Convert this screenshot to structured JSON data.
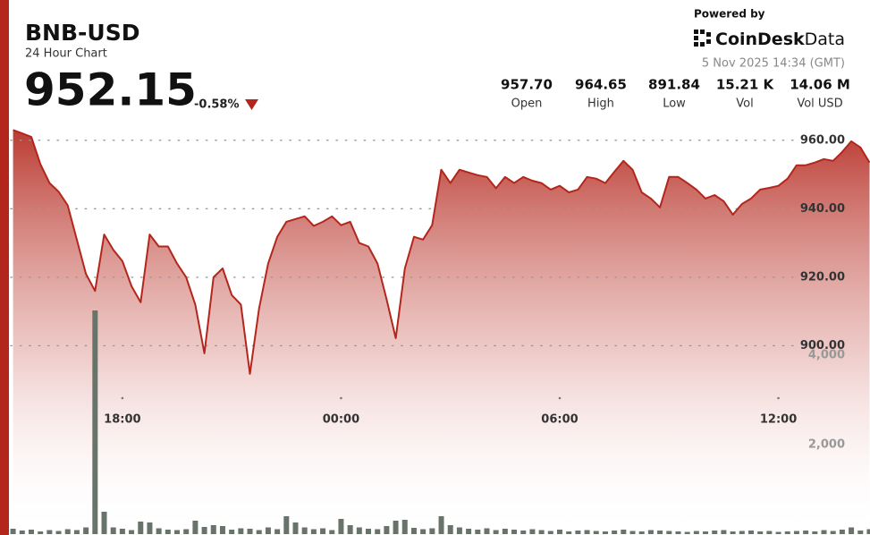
{
  "header": {
    "symbol": "BNB-USD",
    "subtitle": "24 Hour Chart",
    "price": "952.15",
    "change": "-0.58%",
    "powered_by": "Powered by",
    "brand_main": "CoinDesk",
    "brand_sub": "Data",
    "timestamp": "5 Nov 2025 14:34 (GMT)"
  },
  "stats": [
    {
      "value": "957.70",
      "label": "Open"
    },
    {
      "value": "964.65",
      "label": "High"
    },
    {
      "value": "891.84",
      "label": "Low"
    },
    {
      "value": "15.21 K",
      "label": "Vol"
    },
    {
      "value": "14.06 M",
      "label": "Vol USD"
    }
  ],
  "chart_data": {
    "type": "line",
    "categories": [
      null,
      null,
      null,
      null,
      null,
      null,
      null,
      null,
      null,
      null,
      null,
      null,
      "18:00",
      null,
      null,
      null,
      null,
      null,
      null,
      null,
      null,
      null,
      null,
      null,
      null,
      null,
      null,
      null,
      null,
      null,
      null,
      null,
      null,
      null,
      null,
      null,
      "00:00",
      null,
      null,
      null,
      null,
      null,
      null,
      null,
      null,
      null,
      null,
      null,
      null,
      null,
      null,
      null,
      null,
      null,
      null,
      null,
      null,
      null,
      null,
      null,
      "06:00",
      null,
      null,
      null,
      null,
      null,
      null,
      null,
      null,
      null,
      null,
      null,
      null,
      null,
      null,
      null,
      null,
      null,
      null,
      null,
      null,
      null,
      null,
      null,
      "12:00",
      null,
      null,
      null,
      null,
      null,
      null,
      null,
      null,
      null,
      null
    ],
    "series": [
      {
        "color": "#b3261c",
        "values": [
          963,
          962,
          961,
          953,
          947.5,
          945,
          941,
          931,
          921,
          916,
          932.5,
          928,
          924.7,
          917.4,
          912.7,
          932.5,
          929,
          929,
          924,
          920,
          912,
          897.8,
          920,
          922.6,
          914.8,
          912,
          891.8,
          910.8,
          924,
          931.8,
          936.2,
          937,
          937.8,
          935,
          936.2,
          937.8,
          935.2,
          936.2,
          930,
          929,
          924,
          913.5,
          902.2,
          922.6,
          931.8,
          931,
          935.2,
          951.4,
          947.5,
          951.4,
          950.6,
          949.8,
          949.3,
          946,
          949.3,
          947.5,
          949.3,
          948.2,
          947.5,
          945.6,
          946.7,
          944.8,
          945.6,
          949.3,
          948.8,
          947.5,
          950.8,
          954,
          951.4,
          944.8,
          943,
          940.4,
          949.3,
          949.3,
          947.5,
          945.6,
          943,
          944,
          942.2,
          938.3,
          941.4,
          943,
          945.6,
          946.1,
          946.7,
          948.8,
          952.7,
          952.7,
          953.5,
          954.5,
          954,
          956.6,
          959.7,
          957.9,
          953.5
        ]
      },
      {
        "axis": "y2",
        "color": "#68746a",
        "values": [
          120,
          80,
          100,
          60,
          90,
          70,
          110,
          90,
          150,
          5000,
          500,
          150,
          120,
          90,
          280,
          260,
          130,
          100,
          90,
          110,
          300,
          160,
          200,
          180,
          100,
          130,
          120,
          90,
          150,
          110,
          400,
          260,
          150,
          110,
          130,
          90,
          340,
          200,
          150,
          120,
          110,
          180,
          300,
          320,
          140,
          110,
          130,
          400,
          200,
          150,
          120,
          100,
          130,
          90,
          120,
          100,
          80,
          110,
          90,
          70,
          100,
          60,
          80,
          90,
          70,
          60,
          80,
          100,
          70,
          60,
          90,
          80,
          70,
          60,
          50,
          70,
          60,
          80,
          90,
          60,
          70,
          80,
          60,
          70,
          50,
          60,
          70,
          80,
          60,
          90,
          70,
          100,
          150,
          80,
          110
        ]
      }
    ],
    "ylim": [
      845,
      967
    ],
    "yticks": [
      {
        "value": 900,
        "label": "900.00"
      },
      {
        "value": 920,
        "label": "920.00"
      },
      {
        "value": 940,
        "label": "940.00"
      },
      {
        "value": 960,
        "label": "960.00"
      }
    ],
    "y2lim": [
      0,
      9340
    ],
    "y2ticks": [
      {
        "value": 2000,
        "label": "2,000"
      },
      {
        "value": 4000,
        "label": "4,000"
      }
    ],
    "grid": true
  }
}
